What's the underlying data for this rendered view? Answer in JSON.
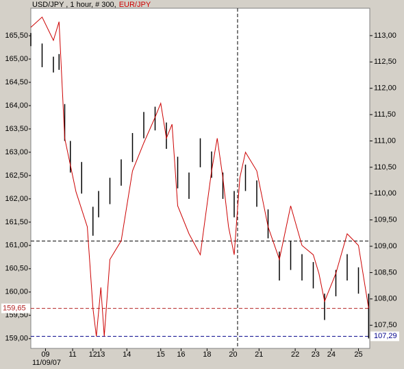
{
  "chart_data": {
    "type": "hlc-overlay",
    "title": "USD/JPY , 1 hour, # 300,",
    "date_label": "11/09/07",
    "xlim": [
      0,
      300
    ],
    "xticks": [
      {
        "value": 13,
        "label": "09"
      },
      {
        "value": 37,
        "label": "11"
      },
      {
        "value": 55,
        "label": "12"
      },
      {
        "value": 62,
        "label": "13"
      },
      {
        "value": 85,
        "label": "14"
      },
      {
        "value": 115,
        "label": "15"
      },
      {
        "value": 133,
        "label": "16"
      },
      {
        "value": 156,
        "label": "18"
      },
      {
        "value": 179,
        "label": "20"
      },
      {
        "value": 202,
        "label": "21"
      },
      {
        "value": 234,
        "label": "22"
      },
      {
        "value": 252,
        "label": "23"
      },
      {
        "value": 266,
        "label": "24"
      },
      {
        "value": 290,
        "label": "25"
      }
    ],
    "ylim": [
      158.79,
      166.09
    ],
    "yticks": [
      {
        "value": 159,
        "label": "159,00"
      },
      {
        "value": 159.5,
        "label": "159,50"
      },
      {
        "value": 160,
        "label": "160,00"
      },
      {
        "value": 160.5,
        "label": "160,50"
      },
      {
        "value": 161,
        "label": "161,00"
      },
      {
        "value": 161.5,
        "label": "161,50"
      },
      {
        "value": 162,
        "label": "162,00"
      },
      {
        "value": 162.5,
        "label": "162,50"
      },
      {
        "value": 163,
        "label": "163,00"
      },
      {
        "value": 163.5,
        "label": "163,50"
      },
      {
        "value": 164,
        "label": "164,00"
      },
      {
        "value": 164.5,
        "label": "164,50"
      },
      {
        "value": 165,
        "label": "165,00"
      },
      {
        "value": 165.5,
        "label": "165,50"
      }
    ],
    "y2lim": [
      107.06,
      113.52
    ],
    "y2ticks": [
      {
        "value": 107.5,
        "label": "107,50"
      },
      {
        "value": 108,
        "label": "108,00"
      },
      {
        "value": 108.5,
        "label": "108,50"
      },
      {
        "value": 109,
        "label": "109,00"
      },
      {
        "value": 109.5,
        "label": "109,50"
      },
      {
        "value": 110,
        "label": "110,00"
      },
      {
        "value": 110.5,
        "label": "110,50"
      },
      {
        "value": 111,
        "label": "111,00"
      },
      {
        "value": 111.5,
        "label": "111,50"
      },
      {
        "value": 112,
        "label": "112,00"
      },
      {
        "value": 112.5,
        "label": "112,50"
      },
      {
        "value": 113,
        "label": "113,00"
      }
    ],
    "vline": 183,
    "levels": [
      {
        "value": 109.1,
        "axis": "y2",
        "color": "#000000"
      },
      {
        "value": 159.65,
        "axis": "y",
        "color": "#b22222",
        "label": "159,65"
      },
      {
        "value": 107.29,
        "axis": "y2",
        "color": "#00008b",
        "label": "107,29"
      }
    ],
    "series": [
      {
        "axis": "y2",
        "color": "#000000",
        "x": [
          0,
          10,
          20,
          25,
          30,
          35,
          45,
          55,
          60,
          70,
          80,
          90,
          100,
          110,
          120,
          130,
          140,
          150,
          160,
          170,
          180,
          190,
          200,
          210,
          220,
          230,
          240,
          250,
          260,
          270,
          280,
          290,
          299
        ],
        "high": [
          113.05,
          112.85,
          112.6,
          112.65,
          111.7,
          111.0,
          110.6,
          109.75,
          110.05,
          110.3,
          110.65,
          111.15,
          111.55,
          111.65,
          111.35,
          110.7,
          110.4,
          111.05,
          110.8,
          110.4,
          110.05,
          110.55,
          110.25,
          109.7,
          108.9,
          109.1,
          108.85,
          108.7,
          108.1,
          108.55,
          108.85,
          108.6,
          108.1
        ],
        "low": [
          112.8,
          112.4,
          112.3,
          112.35,
          111.0,
          110.4,
          110.0,
          109.2,
          109.55,
          109.8,
          110.15,
          110.6,
          111.05,
          111.2,
          110.85,
          110.1,
          109.9,
          110.5,
          110.3,
          109.9,
          109.55,
          110.05,
          109.75,
          109.15,
          108.35,
          108.55,
          108.35,
          108.2,
          107.6,
          108.05,
          108.35,
          108.1,
          107.25
        ]
      },
      {
        "name": "EUR/JPY",
        "axis": "y",
        "color": "#cc0000",
        "x": [
          0,
          10,
          20,
          25,
          30,
          40,
          50,
          55,
          58,
          62,
          65,
          70,
          80,
          90,
          100,
          110,
          115,
          120,
          125,
          130,
          140,
          150,
          160,
          165,
          170,
          175,
          180,
          185,
          190,
          200,
          210,
          220,
          230,
          240,
          250,
          255,
          260,
          270,
          280,
          290,
          299
        ],
        "values": [
          165.68,
          165.9,
          165.4,
          165.8,
          163.3,
          162.15,
          161.4,
          159.65,
          159.05,
          160.1,
          159.05,
          160.7,
          161.1,
          162.6,
          163.2,
          163.75,
          164.05,
          163.3,
          163.6,
          161.85,
          161.25,
          160.8,
          162.6,
          163.3,
          162.45,
          161.4,
          160.8,
          162.45,
          163.0,
          162.6,
          161.4,
          160.7,
          161.85,
          161.0,
          160.8,
          160.4,
          159.8,
          160.4,
          161.25,
          161.0,
          159.65
        ]
      }
    ]
  }
}
